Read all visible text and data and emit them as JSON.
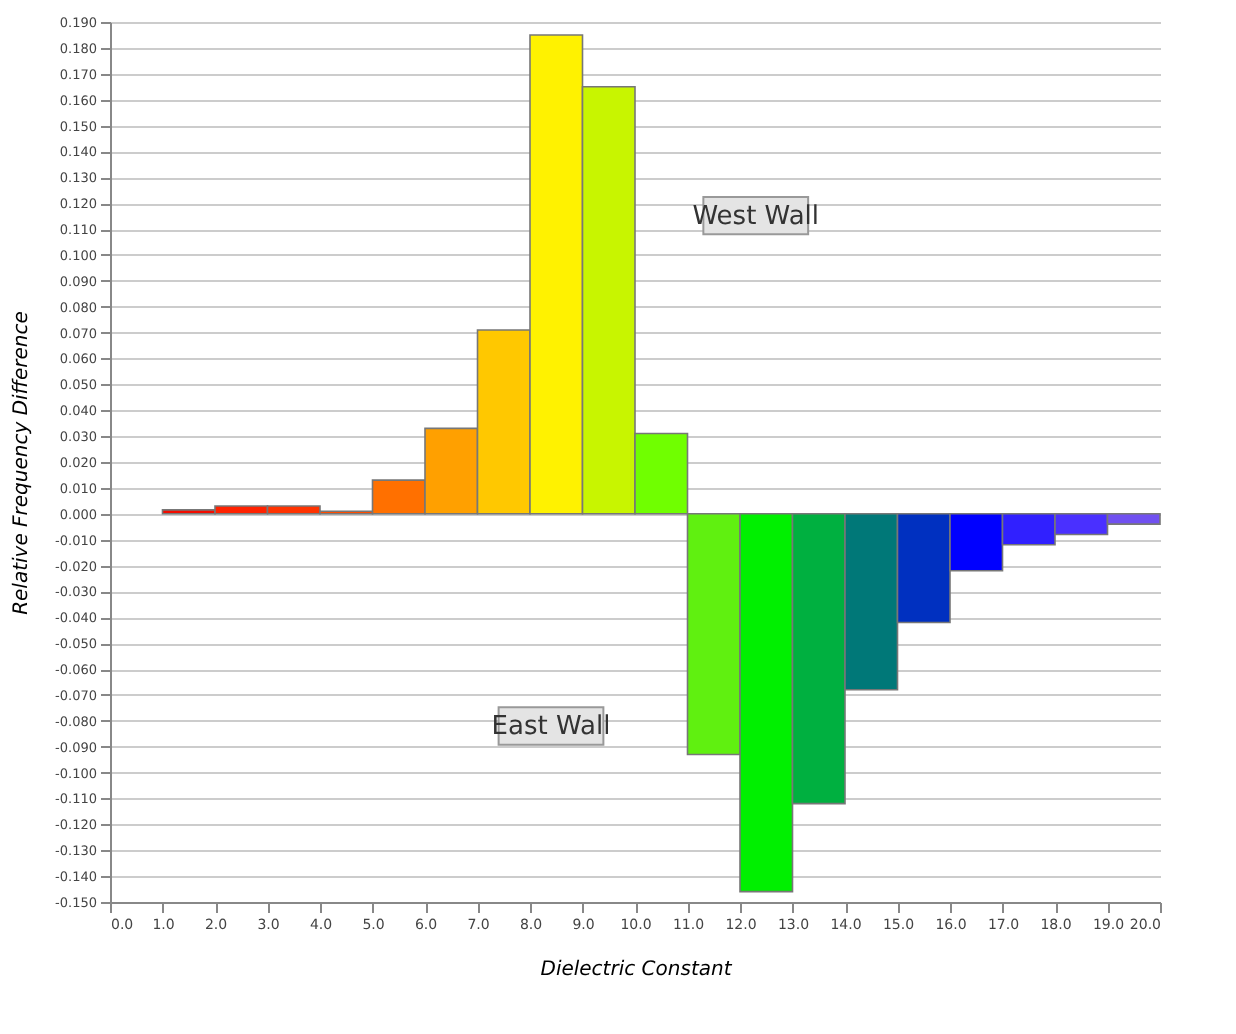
{
  "chart_data": {
    "type": "histogram",
    "xlabel": "Dielectric Constant",
    "ylabel": "Relative Frequency Difference",
    "bins": [
      1,
      2,
      3,
      4,
      5,
      6,
      7,
      8,
      9,
      10,
      11,
      12,
      13,
      14,
      15,
      16,
      17,
      18,
      19,
      20
    ],
    "values": [
      0.0015,
      0.003,
      0.003,
      0.001,
      0.013,
      0.033,
      0.071,
      0.185,
      0.165,
      0.031,
      -0.093,
      -0.146,
      -0.112,
      -0.068,
      -0.042,
      -0.022,
      -0.012,
      -0.008,
      -0.004
    ],
    "colors": [
      "#f20c00",
      "#ff2200",
      "#ff3300",
      "#ff4d00",
      "#ff7000",
      "#ffa000",
      "#ffc800",
      "#fff200",
      "#c8f500",
      "#70ff00",
      "#60f010",
      "#00f000",
      "#00b040",
      "#007878",
      "#0030c0",
      "#0000ff",
      "#3020ff",
      "#4a30ff",
      "#7050f0"
    ],
    "xlim": [
      0,
      20
    ],
    "xticks": [
      {
        "value": 0,
        "label": "0.0"
      },
      {
        "value": 1,
        "label": "1.0"
      },
      {
        "value": 2,
        "label": "2.0"
      },
      {
        "value": 3,
        "label": "3.0"
      },
      {
        "value": 4,
        "label": "4.0"
      },
      {
        "value": 5,
        "label": "5.0"
      },
      {
        "value": 6,
        "label": "6.0"
      },
      {
        "value": 7,
        "label": "7.0"
      },
      {
        "value": 8,
        "label": "8.0"
      },
      {
        "value": 9,
        "label": "9.0"
      },
      {
        "value": 10,
        "label": "10.0"
      },
      {
        "value": 11,
        "label": "11.0"
      },
      {
        "value": 12,
        "label": "12.0"
      },
      {
        "value": 13,
        "label": "13.0"
      },
      {
        "value": 14,
        "label": "14.0"
      },
      {
        "value": 15,
        "label": "15.0"
      },
      {
        "value": 16,
        "label": "16.0"
      },
      {
        "value": 17,
        "label": "17.0"
      },
      {
        "value": 18,
        "label": "18.0"
      },
      {
        "value": 19,
        "label": "19.0"
      },
      {
        "value": 20,
        "label": "20.0"
      }
    ],
    "ylim": [
      -0.15,
      0.19
    ],
    "yticks": [
      {
        "value": -0.15,
        "label": "-0.150"
      },
      {
        "value": -0.14,
        "label": "-0.140"
      },
      {
        "value": -0.13,
        "label": "-0.130"
      },
      {
        "value": -0.12,
        "label": "-0.120"
      },
      {
        "value": -0.11,
        "label": "-0.110"
      },
      {
        "value": -0.1,
        "label": "-0.100"
      },
      {
        "value": -0.09,
        "label": "-0.090"
      },
      {
        "value": -0.08,
        "label": "-0.080"
      },
      {
        "value": -0.07,
        "label": "-0.070"
      },
      {
        "value": -0.06,
        "label": "-0.060"
      },
      {
        "value": -0.05,
        "label": "-0.050"
      },
      {
        "value": -0.04,
        "label": "-0.040"
      },
      {
        "value": -0.03,
        "label": "-0.030"
      },
      {
        "value": -0.02,
        "label": "-0.020"
      },
      {
        "value": -0.01,
        "label": "-0.010"
      },
      {
        "value": 0,
        "label": "0.000"
      },
      {
        "value": 0.01,
        "label": "0.010"
      },
      {
        "value": 0.02,
        "label": "0.020"
      },
      {
        "value": 0.03,
        "label": "0.030"
      },
      {
        "value": 0.04,
        "label": "0.040"
      },
      {
        "value": 0.05,
        "label": "0.050"
      },
      {
        "value": 0.06,
        "label": "0.060"
      },
      {
        "value": 0.07,
        "label": "0.070"
      },
      {
        "value": 0.08,
        "label": "0.080"
      },
      {
        "value": 0.09,
        "label": "0.090"
      },
      {
        "value": 0.1,
        "label": "0.100"
      },
      {
        "value": 0.11,
        "label": "0.110"
      },
      {
        "value": 0.12,
        "label": "0.120"
      },
      {
        "value": 0.13,
        "label": "0.130"
      },
      {
        "value": 0.14,
        "label": "0.140"
      },
      {
        "value": 0.15,
        "label": "0.150"
      },
      {
        "value": 0.16,
        "label": "0.160"
      },
      {
        "value": 0.17,
        "label": "0.170"
      },
      {
        "value": 0.18,
        "label": "0.180"
      },
      {
        "value": 0.19,
        "label": "0.190"
      }
    ],
    "grid": "y",
    "annotations": [
      "West Wall",
      "East Wall"
    ]
  }
}
